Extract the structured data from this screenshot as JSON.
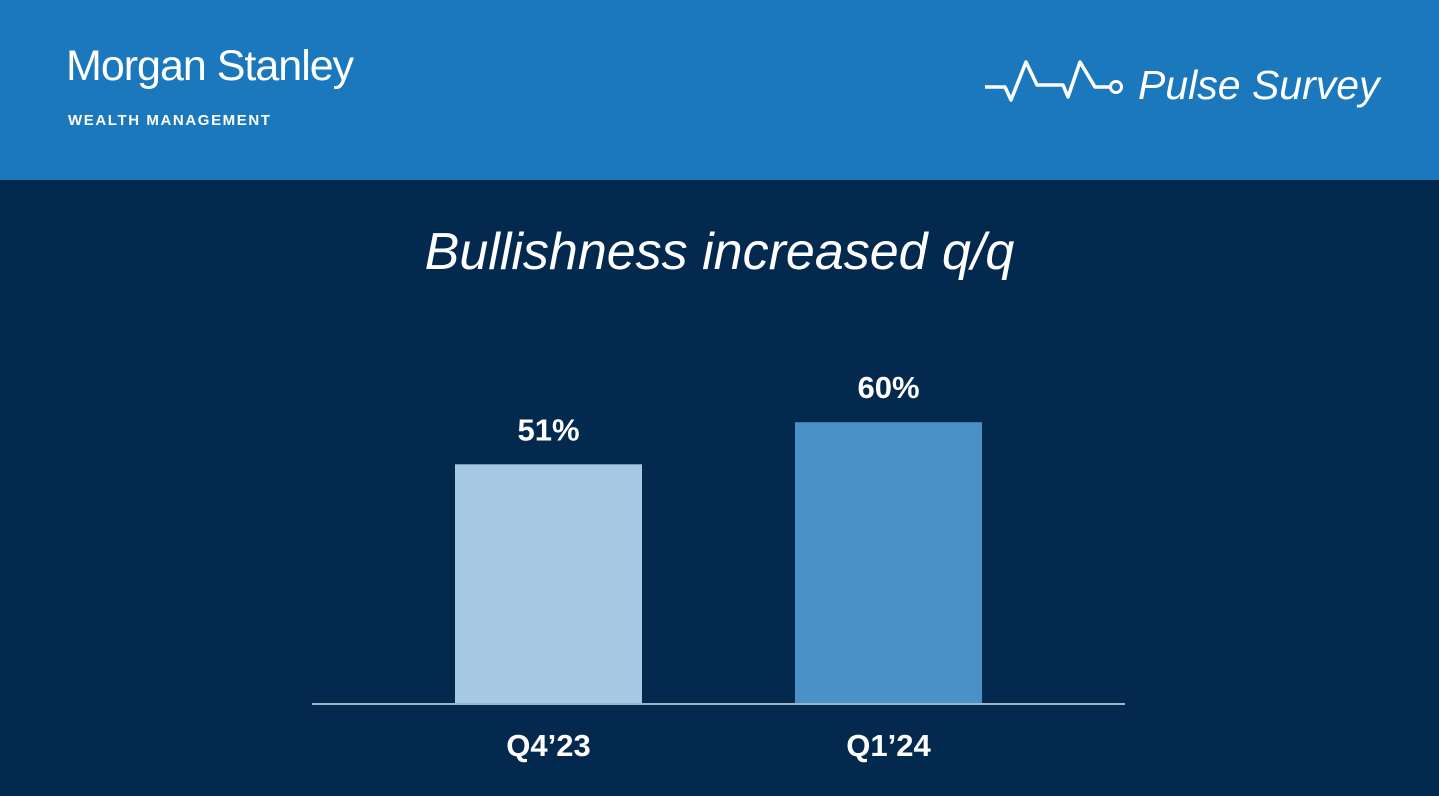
{
  "header": {
    "brand": "Morgan Stanley",
    "brand_sub": "WEALTH MANAGEMENT",
    "survey_title": "Pulse Survey",
    "icon": "pulse-line-icon"
  },
  "colors": {
    "header": "#1b78bd",
    "background": "#03294f",
    "bar_q4": "#a6c9e3",
    "bar_q1": "#4a91c8"
  },
  "chart_data": {
    "type": "bar",
    "title": "Bullishness increased q/q",
    "categories": [
      "Q4’23",
      "Q1’24"
    ],
    "values": [
      51,
      60
    ],
    "data_labels": [
      "51%",
      "60%"
    ],
    "xlabel": "",
    "ylabel": "",
    "ylim": [
      0,
      100
    ],
    "grid": false
  }
}
